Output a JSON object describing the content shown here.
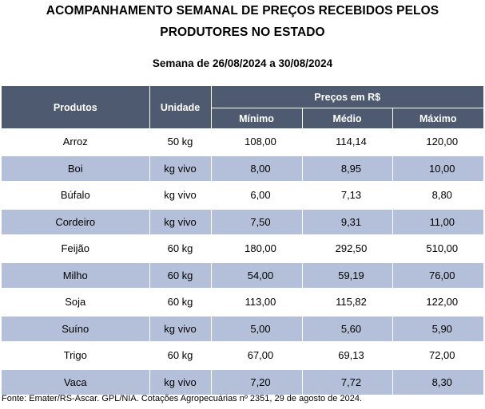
{
  "document": {
    "title_line1": "ACOMPANHAMENTO SEMANAL DE PREÇOS RECEBIDOS PELOS",
    "title_line2": "PRODUTORES NO ESTADO",
    "week": "Semana de 26/08/2024 a 30/08/2024",
    "footer": "Fonte: Emater/RS-Ascar. GPL/NIA. Cotações Agropecuárias nº 2351, 29 de agosto de 2024."
  },
  "table": {
    "header_products": "Produtos",
    "header_unit": "Unidade",
    "header_prices": "Preços em R$",
    "header_min": "Mínimo",
    "header_avg": "Médio",
    "header_max": "Máximo",
    "header_bg": "#4e5a6f",
    "alt_row_bg": "#b4c0d9",
    "rows": [
      {
        "product": "Arroz",
        "unit": "50 kg",
        "min": "108,00",
        "avg": "114,14",
        "max": "120,00"
      },
      {
        "product": "Boi",
        "unit": "kg vivo",
        "min": "8,00",
        "avg": "8,95",
        "max": "10,00"
      },
      {
        "product": "Búfalo",
        "unit": "kg vivo",
        "min": "6,00",
        "avg": "7,13",
        "max": "8,80"
      },
      {
        "product": "Cordeiro",
        "unit": "kg vivo",
        "min": "7,50",
        "avg": "9,31",
        "max": "11,00"
      },
      {
        "product": "Feijão",
        "unit": "60 kg",
        "min": "180,00",
        "avg": "292,50",
        "max": "510,00"
      },
      {
        "product": "Milho",
        "unit": "60 kg",
        "min": "54,00",
        "avg": "59,19",
        "max": "76,00"
      },
      {
        "product": "Soja",
        "unit": "60 kg",
        "min": "113,00",
        "avg": "115,82",
        "max": "122,00"
      },
      {
        "product": "Suíno",
        "unit": "kg vivo",
        "min": "5,00",
        "avg": "5,60",
        "max": "5,90"
      },
      {
        "product": "Trigo",
        "unit": "60 kg",
        "min": "67,00",
        "avg": "69,13",
        "max": "72,00"
      },
      {
        "product": "Vaca",
        "unit": "kg vivo",
        "min": "7,20",
        "avg": "7,72",
        "max": "8,30"
      }
    ]
  }
}
